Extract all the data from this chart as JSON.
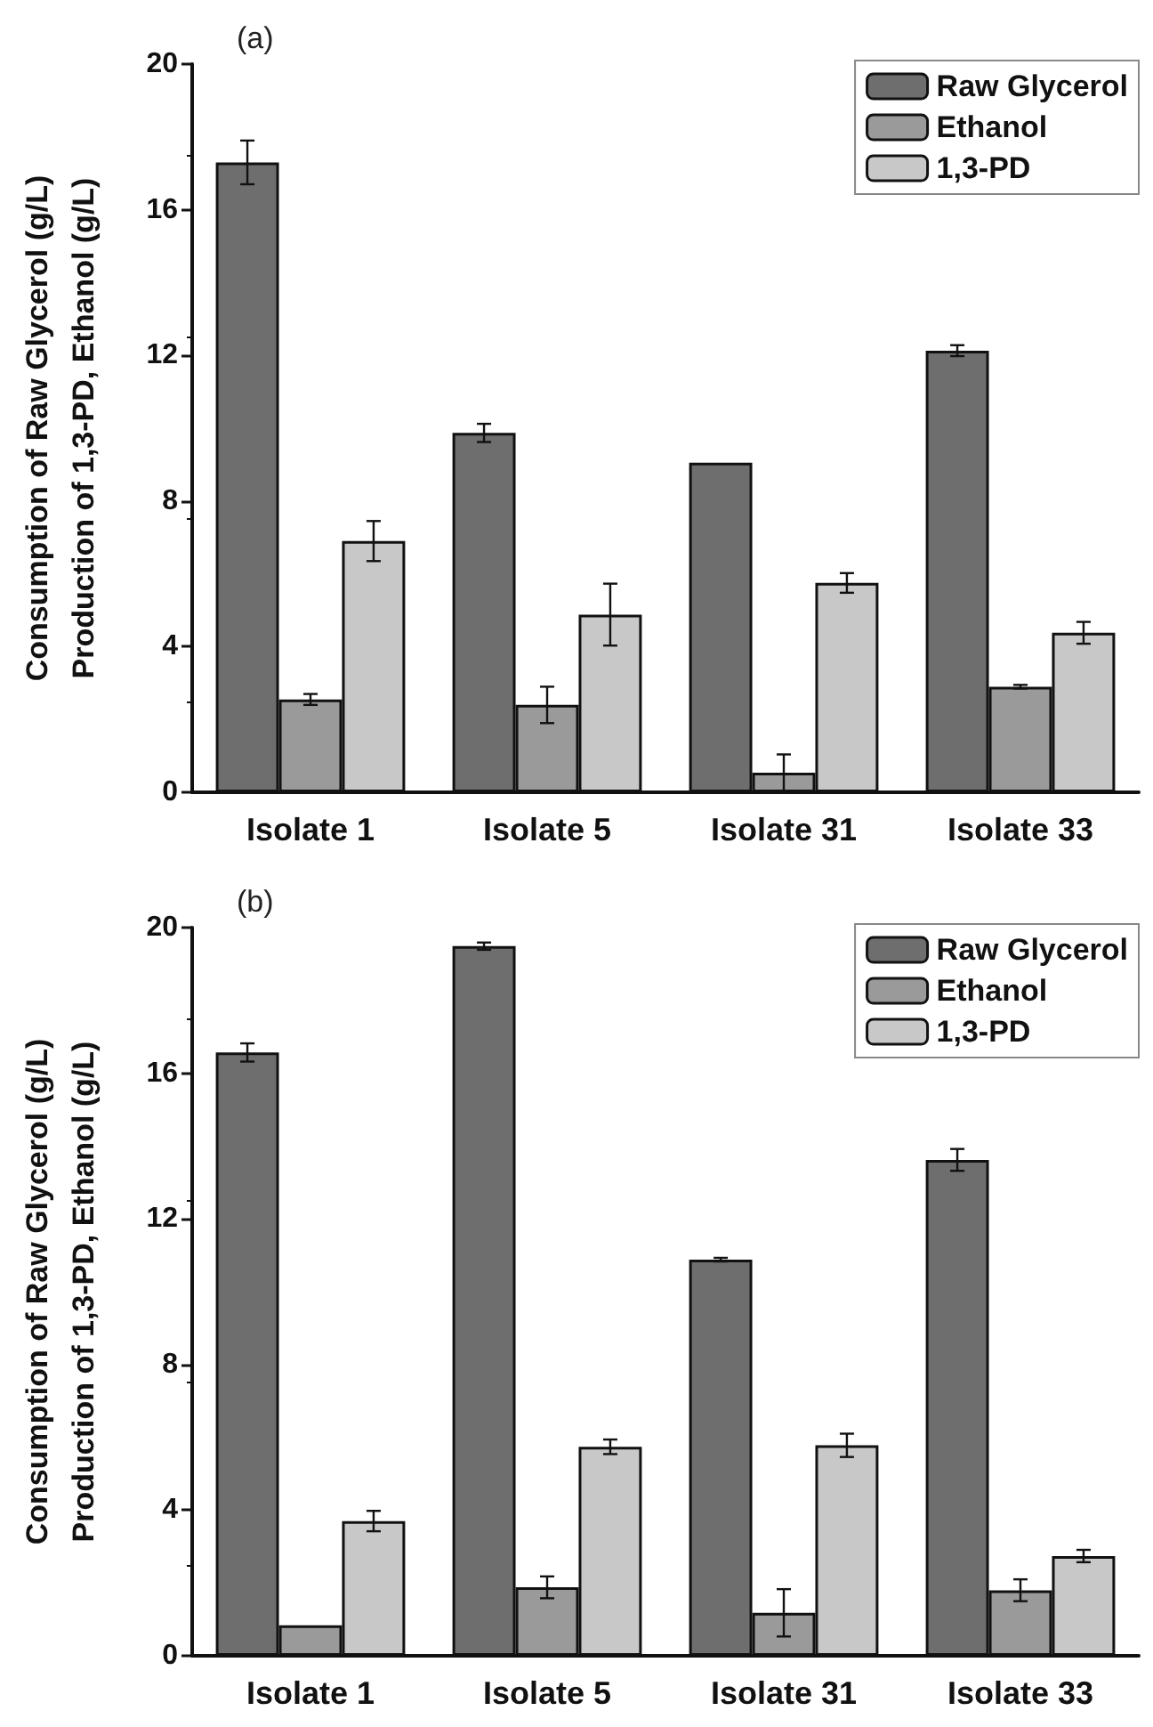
{
  "chart_data": [
    {
      "type": "bar",
      "title": "(a)",
      "ylabel": "Consumption of Raw Glycerol (g/L)\nProduction of 1,3-PD, Ethanol (g/L)",
      "categories": [
        "Isolate 1",
        "Isolate 5",
        "Isolate 31",
        "Isolate 33"
      ],
      "series": [
        {
          "name": "Raw Glycerol",
          "color": "#6e6e6e",
          "values": [
            17.3,
            9.87,
            9.05,
            12.13
          ],
          "errors": [
            0.6,
            0.25,
            null,
            0.15
          ]
        },
        {
          "name": "Ethanol",
          "color": "#9a9a9a",
          "values": [
            2.55,
            2.4,
            0.54,
            2.9
          ],
          "errors": [
            0.15,
            0.5,
            0.5,
            0.05
          ]
        },
        {
          "name": "1,3-PD",
          "color": "#c8c8c8",
          "values": [
            6.9,
            4.88,
            5.75,
            4.38
          ],
          "errors": [
            0.55,
            0.85,
            0.27,
            0.3
          ]
        }
      ],
      "ylim": [
        0,
        20
      ],
      "yticks": [
        0,
        4,
        8,
        12,
        16,
        20
      ],
      "grid": false,
      "legend": "top right"
    },
    {
      "type": "bar",
      "title": "(b)",
      "ylabel": "Consumption of Raw Glycerol (g/L)\nProduction of 1,3-PD, Ethanol (g/L)",
      "categories": [
        "Isolate 1",
        "Isolate 5",
        "Isolate 31",
        "Isolate 33"
      ],
      "series": [
        {
          "name": "Raw Glycerol",
          "color": "#6e6e6e",
          "values": [
            16.57,
            19.49,
            10.88,
            13.62
          ],
          "errors": [
            0.25,
            0.1,
            0.05,
            0.3
          ]
        },
        {
          "name": "Ethanol",
          "color": "#9a9a9a",
          "values": [
            0.84,
            1.88,
            1.18,
            1.8
          ],
          "errors": [
            null,
            0.3,
            0.65,
            0.3
          ]
        },
        {
          "name": "1,3-PD",
          "color": "#c8c8c8",
          "values": [
            3.7,
            5.74,
            5.78,
            2.74
          ],
          "errors": [
            0.28,
            0.2,
            0.32,
            0.17
          ]
        }
      ],
      "ylim": [
        0,
        20
      ],
      "yticks": [
        0,
        4,
        8,
        12,
        16,
        20
      ],
      "grid": false,
      "legend": "top right"
    }
  ]
}
